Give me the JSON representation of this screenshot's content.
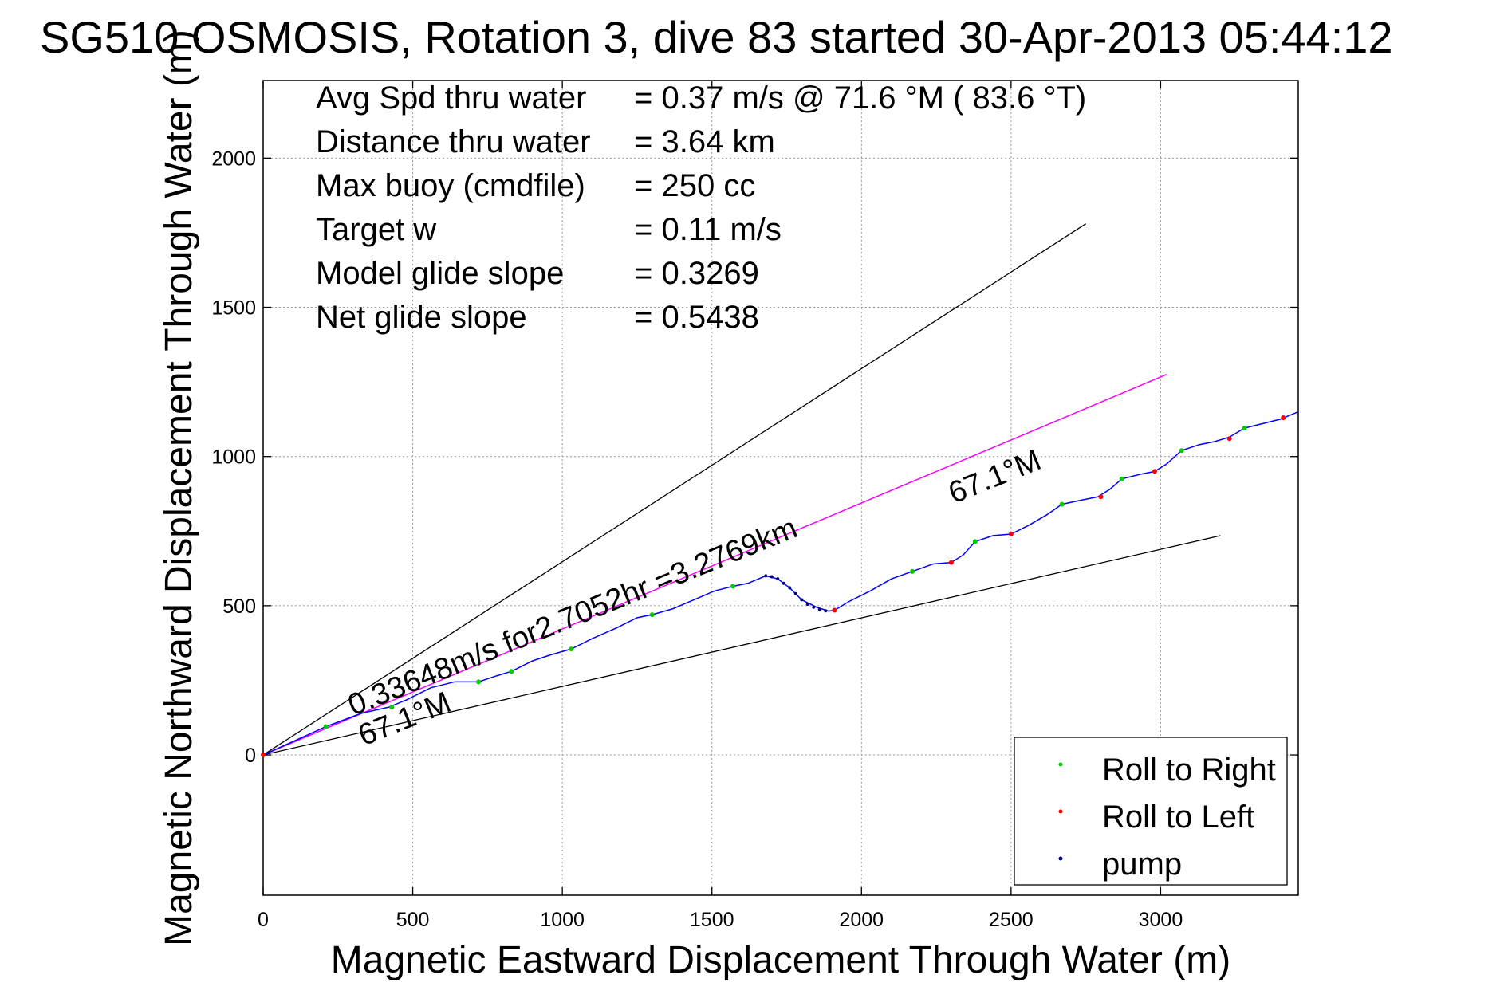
{
  "colors": {
    "track": "#0000ff",
    "model_line": "#ff00ff",
    "bound_line": "#000000",
    "roll_right": "#00cc00",
    "roll_left": "#ff0000",
    "pump": "#000080",
    "grid": "#999999"
  },
  "chart_data": {
    "type": "line",
    "title": "SG510 OSMOSIS, Rotation 3, dive 83 started 30-Apr-2013 05:44:12",
    "xlabel": "Magnetic Eastward Displacement Through Water (m)",
    "ylabel": "Magnetic Northward Displacement Through Water (m)",
    "xlim": [
      0,
      3460
    ],
    "ylim": [
      -470,
      2260
    ],
    "grid": true,
    "legend_position": "bottom-right",
    "xticks": [
      0,
      500,
      1000,
      1500,
      2000,
      2500,
      3000
    ],
    "yticks": [
      0,
      500,
      1000,
      1500,
      2000
    ],
    "info_lines": [
      {
        "label": "Avg Spd thru water",
        "value": "=  0.37 m/s @  71.6 °M ( 83.6 °T)"
      },
      {
        "label": "Distance thru water",
        "value": "=  3.64 km"
      },
      {
        "label": "Max buoy (cmdfile)",
        "value": "= 250 cc"
      },
      {
        "label": "Target w",
        "value": "= 0.11 m/s"
      },
      {
        "label": "Model glide slope",
        "value": "= 0.3269"
      },
      {
        "label": "Net glide slope",
        "value": "= 0.5438"
      }
    ],
    "annotations": {
      "course_text": "0.33648m/s for2.7052hr =3.2769km",
      "heading_label_upper": "67.1°M",
      "heading_label_lower": "67.1°M"
    },
    "lines": {
      "bound_upper": {
        "x": [
          0,
          2750
        ],
        "y": [
          0,
          1780
        ]
      },
      "bound_lower": {
        "x": [
          0,
          3200
        ],
        "y": [
          0,
          735
        ]
      },
      "model_course": {
        "x": [
          0,
          3020
        ],
        "y": [
          0,
          1275
        ]
      }
    },
    "series": [
      {
        "name": "track",
        "x": [
          0,
          100,
          210,
          330,
          420,
          480,
          560,
          640,
          720,
          780,
          830,
          900,
          960,
          1030,
          1100,
          1180,
          1250,
          1300,
          1370,
          1440,
          1510,
          1570,
          1620,
          1680,
          1720,
          1760,
          1800,
          1850,
          1890,
          1910,
          1960,
          2030,
          2100,
          2170,
          2240,
          2300,
          2340,
          2380,
          2440,
          2500,
          2560,
          2620,
          2670,
          2740,
          2790,
          2830,
          2870,
          2930,
          2980,
          3020,
          3070,
          3130,
          3180,
          3230,
          3280,
          3340,
          3400,
          3460
        ],
        "y": [
          0,
          45,
          95,
          140,
          160,
          185,
          225,
          245,
          245,
          265,
          280,
          315,
          335,
          355,
          390,
          425,
          460,
          470,
          490,
          520,
          550,
          565,
          575,
          600,
          590,
          560,
          520,
          495,
          482,
          485,
          515,
          550,
          590,
          615,
          640,
          645,
          670,
          715,
          735,
          740,
          770,
          805,
          840,
          855,
          865,
          890,
          925,
          940,
          950,
          975,
          1020,
          1040,
          1050,
          1065,
          1095,
          1110,
          1125,
          1150
        ]
      },
      {
        "name": "Roll to Right",
        "x": [
          210,
          430,
          720,
          830,
          1030,
          1300,
          1570,
          2170,
          2380,
          2670,
          2870,
          3070,
          3280
        ],
        "y": [
          95,
          160,
          245,
          280,
          355,
          470,
          565,
          615,
          715,
          840,
          925,
          1020,
          1095
        ]
      },
      {
        "name": "Roll to Left",
        "x": [
          0,
          1910,
          2300,
          2500,
          2800,
          2980,
          3230,
          3410
        ],
        "y": [
          0,
          485,
          645,
          740,
          865,
          950,
          1060,
          1130
        ]
      },
      {
        "name": "pump",
        "x": [
          1680,
          1700,
          1720,
          1740,
          1760,
          1780,
          1800,
          1820,
          1840,
          1860,
          1880
        ],
        "y": [
          600,
          597,
          590,
          575,
          560,
          540,
          520,
          505,
          495,
          488,
          483
        ]
      }
    ]
  }
}
